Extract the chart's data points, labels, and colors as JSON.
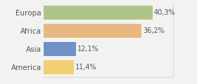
{
  "categories": [
    "America",
    "Asia",
    "Africa",
    "Europa"
  ],
  "values": [
    11.4,
    12.1,
    36.2,
    40.3
  ],
  "labels": [
    "11,4%",
    "12,1%",
    "36,2%",
    "40,3%"
  ],
  "bar_colors": [
    "#f0d070",
    "#7090c8",
    "#e8b882",
    "#aec48a"
  ],
  "background_color": "#f2f2f2",
  "xlim": [
    0,
    48
  ],
  "figsize": [
    2.8,
    1.2
  ],
  "dpi": 100
}
